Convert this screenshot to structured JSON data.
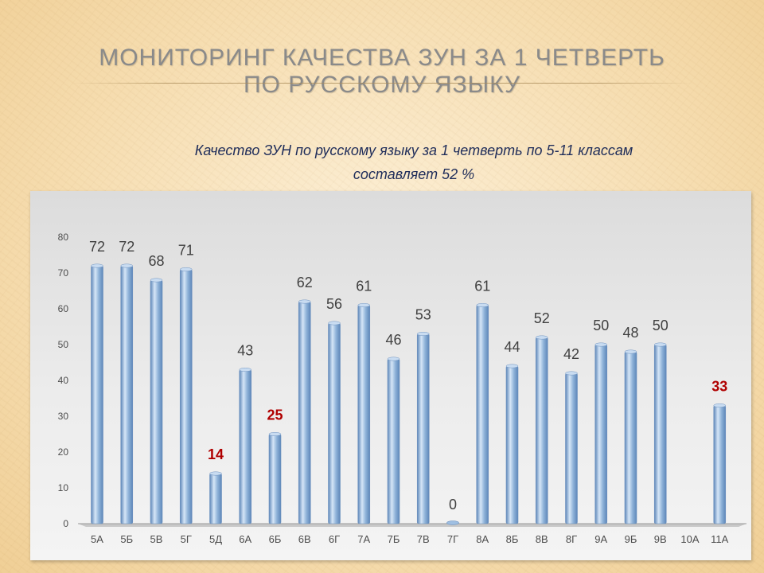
{
  "slide": {
    "title_line1": "МОНИТОРИНГ КАЧЕСТВА ЗУН ЗА 1  ЧЕТВЕРТЬ",
    "title_line2": "ПО  РУССКОМУ  ЯЗЫКУ",
    "subtitle_line1": "Качество ЗУН по русскому языку  за 1 четверть  по 5-11 классам",
    "subtitle_line2": "составляет  52 %",
    "title_color": "#8a8a8a",
    "subtitle_color": "#1f2d5a"
  },
  "chart_data": {
    "type": "bar",
    "title": "",
    "xlabel": "",
    "ylabel": "",
    "ylim": [
      0,
      80
    ],
    "yticks": [
      0,
      10,
      20,
      30,
      40,
      50,
      60,
      70,
      80
    ],
    "grid": false,
    "legend": "none",
    "categories": [
      "5А",
      "5Б",
      "5В",
      "5Г",
      "5Д",
      "6А",
      "6Б",
      "6В",
      "6Г",
      "7А",
      "7Б",
      "7В",
      "7Г",
      "8А",
      "8Б",
      "8В",
      "8Г",
      "9А",
      "9Б",
      "9В",
      "10А",
      "11А"
    ],
    "values": [
      72,
      72,
      68,
      71,
      14,
      43,
      25,
      62,
      56,
      61,
      46,
      53,
      0,
      61,
      44,
      52,
      42,
      50,
      48,
      50,
      null,
      33
    ],
    "data_labels": [
      "72",
      "72",
      "68",
      "71",
      "14",
      "43",
      "25",
      "62",
      "56",
      "61",
      "46",
      "53",
      "0",
      "61",
      "44",
      "52",
      "42",
      "50",
      "48",
      "50",
      "",
      "33"
    ],
    "highlighted_categories": [
      "5Д",
      "6Б",
      "11А"
    ],
    "colors": {
      "bar": "#8fb3d9",
      "bar_dark": "#5d86b8",
      "label": "#404040",
      "highlight_label": "#b00000",
      "axis_text": "#4d4d4d"
    }
  }
}
